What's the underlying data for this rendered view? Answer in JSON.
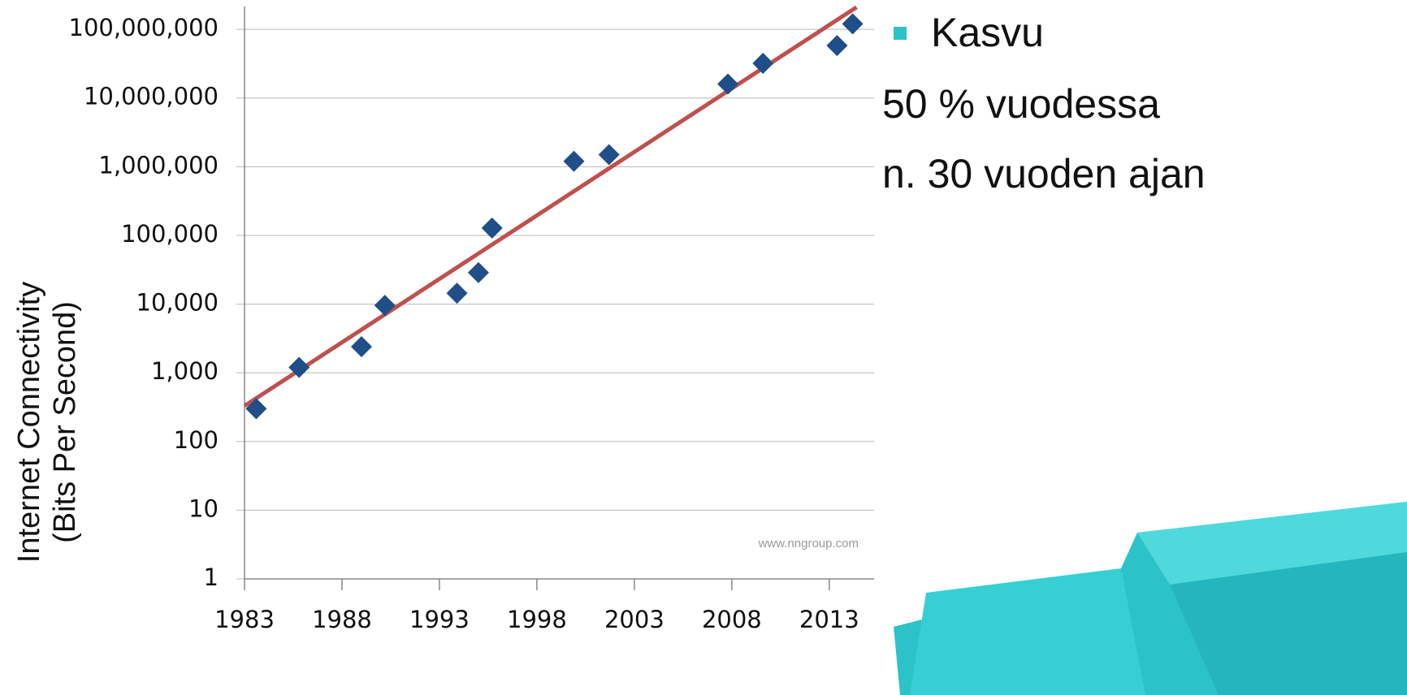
{
  "chart_data": {
    "type": "scatter",
    "y_label_lines": [
      "Internet Connectivity",
      "(Bits Per Second)"
    ],
    "watermark": "www.nngroup.com",
    "log_y": true,
    "grid": true,
    "color": "#1f4e89",
    "x": [
      1983.6,
      1985.8,
      1989.0,
      1990.2,
      1993.9,
      1995.0,
      1995.7,
      1999.9,
      2001.7,
      2007.8,
      2009.6,
      2013.4,
      2014.2
    ],
    "values": [
      300,
      1200,
      2400,
      9600,
      14400,
      28800,
      128000,
      1200000,
      1500000,
      16000000,
      32000000,
      58000000,
      120000000
    ],
    "trend": {
      "color": "#c0504d",
      "x": [
        1983,
        2014.4
      ],
      "values": [
        330,
        210000000
      ]
    },
    "xlim": [
      1983,
      2015.3
    ],
    "xticks": [
      1983,
      1988,
      1993,
      1998,
      2003,
      2008,
      2013
    ],
    "ylim": [
      1,
      215000000
    ],
    "yticks": [
      1,
      10,
      100,
      {
        "value": 1000,
        "label": "1,000"
      },
      {
        "value": 10000,
        "label": "10,000"
      },
      {
        "value": 100000,
        "label": "100,000"
      },
      {
        "value": 1000000,
        "label": "1,000,000"
      },
      {
        "value": 10000000,
        "label": "10,000,000"
      },
      {
        "value": 100000000,
        "label": "100,000,000"
      }
    ]
  },
  "slide_text": {
    "bullet": "Kasvu",
    "lines": [
      "50 % vuodessa",
      "n. 30 vuoden ajan"
    ]
  }
}
